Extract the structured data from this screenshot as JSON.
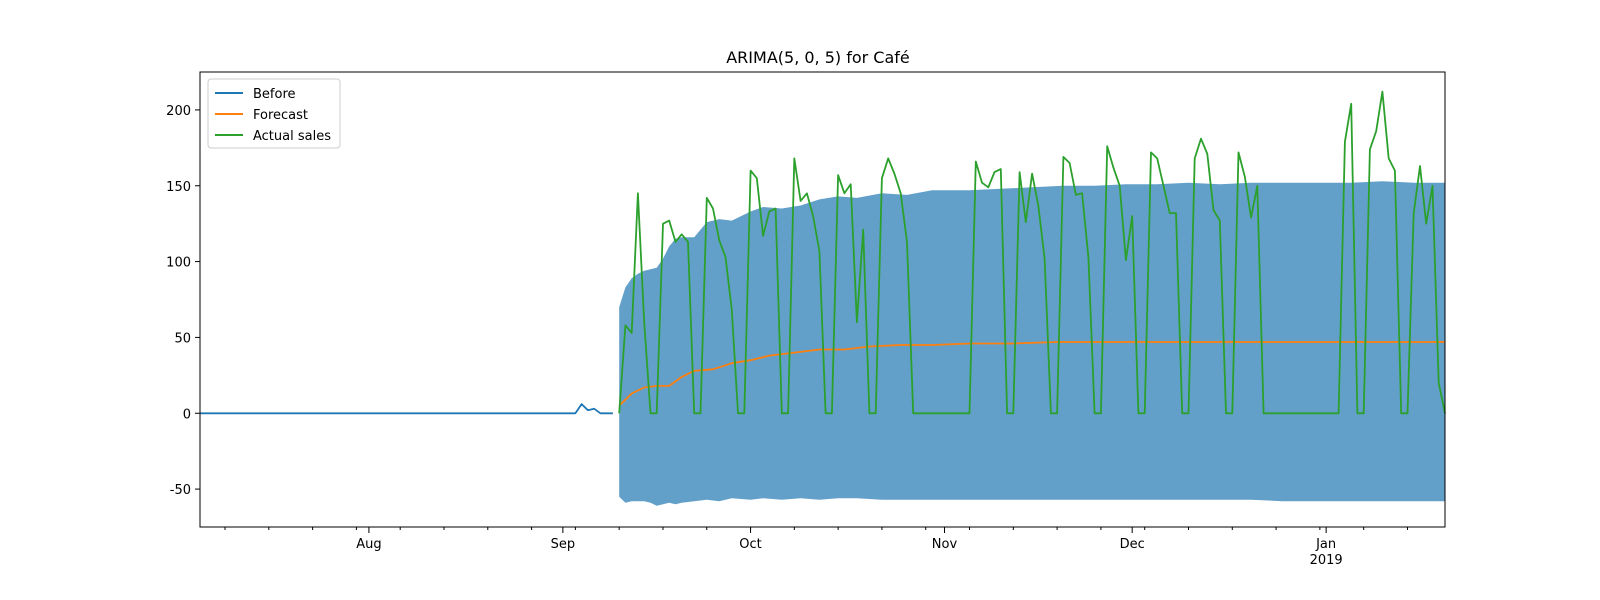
{
  "chart_data": {
    "type": "line",
    "title": "ARIMA(5, 0, 5) for Café",
    "xlabel": "",
    "ylabel": "",
    "xlim": [
      "2018-07-05",
      "2019-01-20"
    ],
    "ylim": [
      -75,
      225
    ],
    "grid": false,
    "legend_position": "top-left",
    "y_ticks": [
      -50,
      0,
      50,
      100,
      150,
      200
    ],
    "x_ticks": [
      {
        "date": "2018-08-01",
        "label": "Aug",
        "sublabel": ""
      },
      {
        "date": "2018-09-01",
        "label": "Sep",
        "sublabel": ""
      },
      {
        "date": "2018-10-01",
        "label": "Oct",
        "sublabel": ""
      },
      {
        "date": "2018-11-01",
        "label": "Nov",
        "sublabel": ""
      },
      {
        "date": "2018-12-01",
        "label": "Dec",
        "sublabel": ""
      },
      {
        "date": "2019-01-01",
        "label": "Jan",
        "sublabel": "2019"
      }
    ],
    "colors": {
      "before": "#1f77b4",
      "forecast": "#ff7f0e",
      "actual": "#2ca02c",
      "interval": "#1f77b4"
    },
    "series": [
      {
        "name": "Before",
        "x": [
          "2018-07-05",
          "2018-07-15",
          "2018-07-25",
          "2018-08-05",
          "2018-08-15",
          "2018-08-25",
          "2018-09-03",
          "2018-09-04",
          "2018-09-05",
          "2018-09-06",
          "2018-09-07",
          "2018-09-08",
          "2018-09-09"
        ],
        "values": [
          0,
          0,
          0,
          0,
          0,
          0,
          0,
          6,
          2,
          3,
          0,
          0,
          0
        ]
      },
      {
        "name": "Forecast",
        "x": [
          "2018-09-10",
          "2018-09-12",
          "2018-09-14",
          "2018-09-16",
          "2018-09-18",
          "2018-09-20",
          "2018-09-22",
          "2018-09-25",
          "2018-09-28",
          "2018-10-01",
          "2018-10-04",
          "2018-10-08",
          "2018-10-12",
          "2018-10-16",
          "2018-10-20",
          "2018-10-25",
          "2018-10-30",
          "2018-11-05",
          "2018-11-12",
          "2018-11-19",
          "2018-11-26",
          "2018-12-03",
          "2018-12-10",
          "2018-12-17",
          "2018-12-24",
          "2018-12-31",
          "2019-01-07",
          "2019-01-14",
          "2019-01-20"
        ],
        "values": [
          5,
          13,
          17,
          18,
          18,
          24,
          28,
          29,
          33,
          35,
          38,
          40,
          42,
          42,
          44,
          45,
          45,
          46,
          46,
          47,
          47,
          47,
          47,
          47,
          47,
          47,
          47,
          47,
          47
        ]
      },
      {
        "name": "Actual sales",
        "x": [
          "2018-09-10",
          "2018-09-11",
          "2018-09-12",
          "2018-09-13",
          "2018-09-14",
          "2018-09-15",
          "2018-09-16",
          "2018-09-17",
          "2018-09-18",
          "2018-09-19",
          "2018-09-20",
          "2018-09-21",
          "2018-09-22",
          "2018-09-23",
          "2018-09-24",
          "2018-09-25",
          "2018-09-26",
          "2018-09-27",
          "2018-09-28",
          "2018-09-29",
          "2018-09-30",
          "2018-10-01",
          "2018-10-02",
          "2018-10-03",
          "2018-10-04",
          "2018-10-05",
          "2018-10-06",
          "2018-10-07",
          "2018-10-08",
          "2018-10-09",
          "2018-10-10",
          "2018-10-11",
          "2018-10-12",
          "2018-10-13",
          "2018-10-14",
          "2018-10-15",
          "2018-10-16",
          "2018-10-17",
          "2018-10-18",
          "2018-10-19",
          "2018-10-20",
          "2018-10-21",
          "2018-10-22",
          "2018-10-23",
          "2018-10-24",
          "2018-10-25",
          "2018-10-26",
          "2018-10-27",
          "2018-10-28",
          "2018-10-29",
          "2018-10-30",
          "2018-10-31",
          "2018-11-01",
          "2018-11-02",
          "2018-11-03",
          "2018-11-04",
          "2018-11-05",
          "2018-11-06",
          "2018-11-07",
          "2018-11-08",
          "2018-11-09",
          "2018-11-10",
          "2018-11-11",
          "2018-11-12",
          "2018-11-13",
          "2018-11-14",
          "2018-11-15",
          "2018-11-16",
          "2018-11-17",
          "2018-11-18",
          "2018-11-19",
          "2018-11-20",
          "2018-11-21",
          "2018-11-22",
          "2018-11-23",
          "2018-11-24",
          "2018-11-25",
          "2018-11-26",
          "2018-11-27",
          "2018-11-28",
          "2018-11-29",
          "2018-11-30",
          "2018-12-01",
          "2018-12-02",
          "2018-12-03",
          "2018-12-04",
          "2018-12-05",
          "2018-12-06",
          "2018-12-07",
          "2018-12-08",
          "2018-12-09",
          "2018-12-10",
          "2018-12-11",
          "2018-12-12",
          "2018-12-13",
          "2018-12-14",
          "2018-12-15",
          "2018-12-16",
          "2018-12-17",
          "2018-12-18",
          "2018-12-19",
          "2018-12-20",
          "2018-12-21",
          "2018-12-22",
          "2018-12-23",
          "2018-12-24",
          "2018-12-25",
          "2018-12-26",
          "2018-12-27",
          "2018-12-28",
          "2018-12-29",
          "2018-12-30",
          "2018-12-31",
          "2019-01-01",
          "2019-01-02",
          "2019-01-03",
          "2019-01-04",
          "2019-01-05",
          "2019-01-06",
          "2019-01-07",
          "2019-01-08",
          "2019-01-09",
          "2019-01-10",
          "2019-01-11",
          "2019-01-12",
          "2019-01-13",
          "2019-01-14",
          "2019-01-15",
          "2019-01-16",
          "2019-01-17",
          "2019-01-18",
          "2019-01-19",
          "2019-01-20"
        ],
        "values": [
          0,
          58,
          53,
          145,
          60,
          0,
          0,
          125,
          127,
          113,
          118,
          113,
          0,
          0,
          142,
          135,
          114,
          103,
          68,
          0,
          0,
          160,
          155,
          117,
          133,
          135,
          0,
          0,
          168,
          140,
          145,
          130,
          107,
          0,
          0,
          157,
          145,
          151,
          60,
          121,
          0,
          0,
          155,
          168,
          158,
          145,
          113,
          0,
          0,
          0,
          0,
          0,
          0,
          0,
          0,
          0,
          0,
          166,
          152,
          149,
          159,
          161,
          0,
          0,
          159,
          126,
          158,
          137,
          102,
          0,
          0,
          169,
          165,
          144,
          145,
          103,
          0,
          0,
          176,
          162,
          150,
          101,
          130,
          0,
          0,
          172,
          168,
          150,
          132,
          132,
          0,
          0,
          168,
          181,
          171,
          134,
          127,
          0,
          0,
          172,
          156,
          129,
          150,
          0,
          0,
          0,
          0,
          0,
          0,
          0,
          0,
          0,
          0,
          0,
          0,
          0,
          179,
          204,
          0,
          0,
          174,
          186,
          212,
          168,
          160,
          0,
          0,
          132,
          163,
          125,
          150,
          20,
          0
        ]
      }
    ],
    "interval": {
      "x": [
        "2018-09-10",
        "2018-09-11",
        "2018-09-12",
        "2018-09-13",
        "2018-09-14",
        "2018-09-15",
        "2018-09-16",
        "2018-09-17",
        "2018-09-18",
        "2018-09-19",
        "2018-09-20",
        "2018-09-22",
        "2018-09-24",
        "2018-09-26",
        "2018-09-28",
        "2018-10-01",
        "2018-10-03",
        "2018-10-06",
        "2018-10-09",
        "2018-10-12",
        "2018-10-15",
        "2018-10-18",
        "2018-10-22",
        "2018-10-26",
        "2018-10-30",
        "2018-11-05",
        "2018-11-10",
        "2018-11-15",
        "2018-11-20",
        "2018-11-25",
        "2018-11-30",
        "2018-12-05",
        "2018-12-10",
        "2018-12-15",
        "2018-12-20",
        "2018-12-25",
        "2018-12-31",
        "2019-01-05",
        "2019-01-10",
        "2019-01-15",
        "2019-01-20"
      ],
      "upper": [
        70,
        83,
        89,
        92,
        94,
        95,
        96,
        102,
        110,
        115,
        116,
        116,
        126,
        128,
        127,
        133,
        136,
        135,
        137,
        141,
        143,
        142,
        145,
        144,
        147,
        147,
        148,
        149,
        150,
        150,
        151,
        151,
        152,
        151,
        152,
        152,
        152,
        152,
        153,
        152,
        152
      ],
      "lower": [
        -55,
        -59,
        -58,
        -58,
        -58,
        -59,
        -61,
        -60,
        -59,
        -60,
        -59,
        -58,
        -57,
        -58,
        -56,
        -57,
        -56,
        -57,
        -56,
        -57,
        -56,
        -56,
        -57,
        -57,
        -57,
        -57,
        -57,
        -57,
        -57,
        -57,
        -57,
        -57,
        -57,
        -57,
        -57,
        -58,
        -58,
        -58,
        -58,
        -58,
        -58
      ]
    }
  }
}
